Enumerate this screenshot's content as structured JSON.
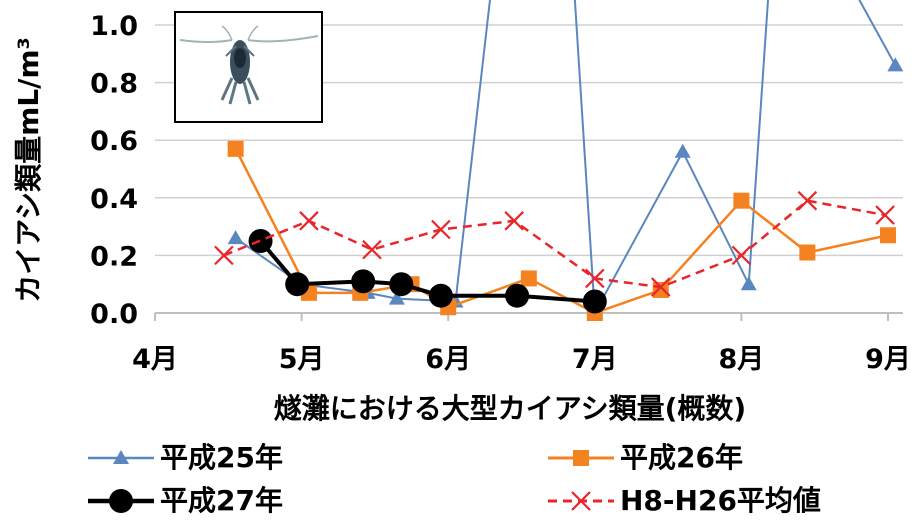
{
  "chart_data": {
    "type": "line",
    "xlabel": "燧灘における大型カイアシ類量(概数)",
    "ylabel": "カイアシ類量mL/m³",
    "ylim": [
      0,
      1.0
    ],
    "yticks": [
      "0.0",
      "0.2",
      "0.4",
      "0.6",
      "0.8",
      "1.0"
    ],
    "xlim": [
      4,
      9
    ],
    "xticks": [
      {
        "value": 4,
        "label": "4月"
      },
      {
        "value": 5,
        "label": "5月"
      },
      {
        "value": 6,
        "label": "6月"
      },
      {
        "value": 7,
        "label": "7月"
      },
      {
        "value": 8,
        "label": "8月"
      },
      {
        "value": 9,
        "label": "9月"
      }
    ],
    "grid": "horizontal",
    "legend_position": "bottom",
    "inset_image": "copepod-photo",
    "series": [
      {
        "name": "平成25年",
        "color": "#5b87c0",
        "marker": "triangle",
        "line": "solid",
        "x": [
          4.55,
          5.0,
          5.45,
          5.65,
          6.05,
          6.4,
          6.8,
          7.0,
          7.6,
          8.05,
          8.25,
          9.05
        ],
        "y": [
          0.26,
          0.1,
          0.07,
          0.05,
          0.04,
          1.6,
          1.6,
          0.0,
          0.56,
          0.1,
          1.6,
          0.86
        ]
      },
      {
        "name": "平成26年",
        "color": "#f58220",
        "marker": "square",
        "line": "solid",
        "x": [
          4.55,
          5.05,
          5.4,
          5.75,
          6.0,
          6.55,
          7.0,
          7.45,
          8.0,
          8.45,
          9.0
        ],
        "y": [
          0.57,
          0.07,
          0.07,
          0.1,
          0.02,
          0.12,
          0.0,
          0.08,
          0.39,
          0.21,
          0.27
        ]
      },
      {
        "name": "平成27年",
        "color": "#000000",
        "marker": "circle",
        "line": "solid",
        "x": [
          4.72,
          4.97,
          5.42,
          5.68,
          5.95,
          6.47,
          7.0
        ],
        "y": [
          0.25,
          0.1,
          0.11,
          0.1,
          0.06,
          0.06,
          0.04
        ]
      },
      {
        "name": "H8-H26平均値",
        "color": "#e8262b",
        "marker": "x",
        "line": "dashed",
        "x": [
          4.47,
          5.05,
          5.48,
          5.95,
          6.45,
          7.0,
          7.45,
          8.0,
          8.45,
          8.98
        ],
        "y": [
          0.2,
          0.32,
          0.22,
          0.29,
          0.32,
          0.12,
          0.09,
          0.2,
          0.39,
          0.34
        ]
      }
    ]
  }
}
